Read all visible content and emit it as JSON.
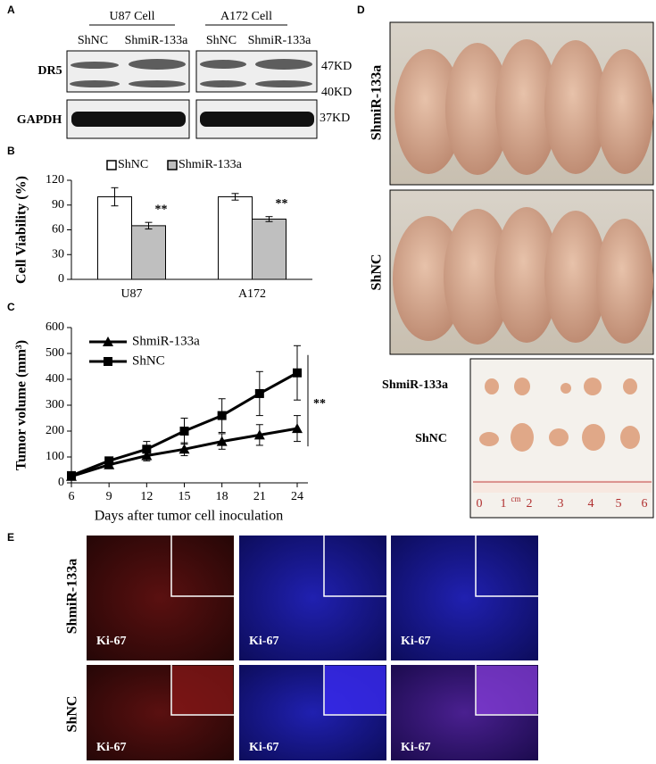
{
  "panel_labels": [
    "A",
    "B",
    "C",
    "D",
    "E"
  ],
  "western_blot": {
    "groups": [
      {
        "title": "U87 Cell",
        "lanes": [
          "ShNC",
          "ShmiR-133a"
        ]
      },
      {
        "title": "A172 Cell",
        "lanes": [
          "ShNC",
          "ShmiR-133a"
        ]
      }
    ],
    "rows": [
      "DR5",
      "GAPDH"
    ],
    "markers": [
      "47KD",
      "40KD",
      "37KD"
    ]
  },
  "chart_data": [
    {
      "type": "bar",
      "y_label": "Cell  Viability (%)",
      "categories": [
        "U87",
        "A172"
      ],
      "series": [
        {
          "name": "ShNC",
          "color": "#ffffff",
          "values": [
            100,
            100
          ],
          "errors": [
            11,
            4
          ]
        },
        {
          "name": "ShmiR-133a",
          "color": "#bfbfbf",
          "values": [
            65,
            73
          ],
          "errors": [
            4,
            3
          ]
        }
      ],
      "annotations": [
        "**",
        "**"
      ],
      "ylim": [
        0,
        120
      ],
      "yticks": [
        0,
        30,
        60,
        90,
        120
      ],
      "legend": "top"
    },
    {
      "type": "line",
      "x_label": "Days after tumor cell inoculation",
      "y_label": "Tumor  volume (mm³)",
      "x": [
        6,
        9,
        12,
        15,
        18,
        21,
        24
      ],
      "series": [
        {
          "name": "ShmiR-133a",
          "color": "#000000",
          "marker": "triangle",
          "values": [
            25,
            70,
            105,
            130,
            160,
            185,
            210
          ],
          "errors": [
            5,
            15,
            20,
            25,
            30,
            40,
            50
          ]
        },
        {
          "name": "ShNC",
          "color": "#000000",
          "marker": "square",
          "values": [
            28,
            85,
            130,
            200,
            260,
            345,
            425
          ],
          "errors": [
            5,
            15,
            30,
            50,
            65,
            85,
            105
          ]
        }
      ],
      "annotation": "**",
      "xlim": [
        6,
        24
      ],
      "xticks": [
        6,
        9,
        12,
        15,
        18,
        21,
        24
      ],
      "ylim": [
        0,
        600
      ],
      "yticks": [
        0,
        100,
        200,
        300,
        400,
        500,
        600
      ],
      "legend": "upper left"
    }
  ],
  "mouse_photos": {
    "rows": [
      "ShmiR-133a",
      "ShNC"
    ]
  },
  "tumor_photo": {
    "rows": [
      "ShmiR-133a",
      "ShNC"
    ],
    "ruler_labels": [
      "0",
      "1",
      "cm",
      "2",
      "3",
      "4",
      "5",
      "6"
    ]
  },
  "fluorescence": {
    "rows": [
      "ShmiR-133a",
      "ShNC"
    ],
    "stain_label": "Ki-67"
  }
}
